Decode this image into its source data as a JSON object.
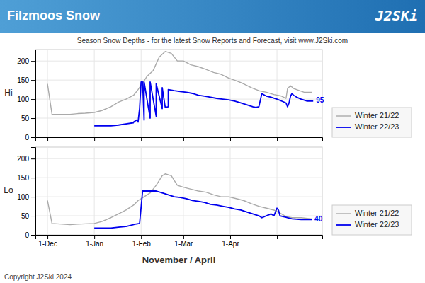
{
  "chart_data": [
    {
      "type": "line",
      "title": "Filzmoos Snow",
      "subtitle": "Season Snow Depths - for the latest Snow Reports and Forecast, visit www.J2Ski.com",
      "ylabel": "Hi",
      "series": [
        {
          "name": "Winter 21/22",
          "color": "#aaaaaa",
          "x": [
            0,
            3,
            10,
            15,
            20,
            25,
            31,
            36,
            42,
            47,
            52,
            57,
            60,
            64,
            66,
            70,
            74,
            78,
            82,
            86,
            90,
            95,
            100,
            105,
            110,
            115,
            120,
            125,
            130,
            135,
            140,
            145,
            150,
            155,
            158,
            159,
            161,
            163,
            165,
            170,
            175
          ],
          "values": [
            140,
            60,
            60,
            60,
            62,
            63,
            65,
            70,
            80,
            92,
            100,
            110,
            125,
            148,
            160,
            175,
            210,
            225,
            220,
            200,
            200,
            190,
            185,
            178,
            170,
            165,
            155,
            148,
            140,
            130,
            122,
            118,
            112,
            108,
            102,
            128,
            135,
            128,
            125,
            118,
            118
          ]
        },
        {
          "name": "Winter 22/23",
          "color": "#0000ee",
          "x": [
            31,
            36,
            42,
            47,
            52,
            57,
            57,
            59,
            60,
            61,
            62,
            63,
            63,
            64,
            64,
            68,
            68,
            72,
            72,
            76,
            76,
            78,
            80,
            80,
            84,
            88,
            92,
            96,
            100,
            104,
            108,
            112,
            116,
            120,
            124,
            128,
            132,
            136,
            138,
            140,
            142,
            143,
            144,
            145,
            148,
            152,
            155,
            158,
            159,
            160,
            161,
            162,
            163,
            164,
            165,
            168,
            172,
            176
          ],
          "values": [
            30,
            30,
            30,
            32,
            35,
            38,
            40,
            45,
            40,
            75,
            145,
            145,
            145,
            45,
            145,
            50,
            145,
            55,
            140,
            75,
            130,
            78,
            80,
            125,
            122,
            120,
            118,
            115,
            110,
            108,
            105,
            102,
            100,
            98,
            95,
            90,
            85,
            80,
            78,
            80,
            115,
            112,
            110,
            108,
            105,
            100,
            95,
            90,
            80,
            90,
            108,
            115,
            110,
            108,
            105,
            100,
            95,
            95
          ]
        }
      ],
      "xlim": [
        -8,
        182
      ],
      "ylim": [
        0,
        230
      ],
      "xticks": [
        0,
        31,
        62,
        90,
        121,
        152
      ],
      "yticks": [
        0,
        50,
        100,
        150,
        200
      ],
      "tick_labels": "y",
      "grid": true,
      "legend": "lower right",
      "annotations": [
        {
          "text": "J2SKi"
        },
        {
          "text": "Copyright J2Ski 2024"
        },
        {
          "text": "95",
          "x": 176,
          "y": 95
        }
      ]
    },
    {
      "type": "line",
      "xlabel": "November / April",
      "ylabel": "Lo",
      "series": [
        {
          "name": "Winter 21/22",
          "color": "#aaaaaa",
          "x": [
            0,
            3,
            10,
            15,
            20,
            25,
            31,
            36,
            42,
            47,
            52,
            57,
            60,
            64,
            68,
            72,
            76,
            78,
            82,
            86,
            90,
            95,
            100,
            105,
            110,
            115,
            120,
            125,
            130,
            135,
            140,
            145,
            150,
            155,
            158,
            162,
            168,
            175
          ],
          "values": [
            90,
            30,
            28,
            27,
            28,
            29,
            30,
            35,
            45,
            55,
            65,
            78,
            90,
            100,
            110,
            130,
            155,
            160,
            155,
            130,
            125,
            120,
            115,
            112,
            105,
            100,
            100,
            95,
            90,
            82,
            75,
            70,
            65,
            55,
            48,
            45,
            45,
            42
          ]
        },
        {
          "name": "Winter 22/23",
          "color": "#0000ee",
          "x": [
            31,
            36,
            42,
            47,
            52,
            55,
            58,
            61,
            63,
            64,
            68,
            72,
            76,
            80,
            84,
            88,
            92,
            96,
            100,
            104,
            108,
            112,
            116,
            120,
            124,
            128,
            132,
            136,
            140,
            142,
            148,
            150,
            152,
            153,
            154,
            156,
            158,
            160,
            162,
            168,
            175
          ],
          "values": [
            18,
            18,
            18,
            20,
            22,
            25,
            28,
            30,
            115,
            115,
            115,
            115,
            110,
            105,
            100,
            98,
            95,
            90,
            88,
            85,
            80,
            78,
            75,
            72,
            68,
            65,
            60,
            55,
            50,
            45,
            55,
            50,
            70,
            65,
            50,
            48,
            46,
            44,
            42,
            40,
            40
          ]
        }
      ],
      "xlim": [
        -8,
        182
      ],
      "ylim": [
        0,
        230
      ],
      "xticks": [
        {
          "value": 0,
          "label": "1-Dec"
        },
        {
          "value": 31,
          "label": "1-Jan"
        },
        {
          "value": 62,
          "label": "1-Feb"
        },
        {
          "value": 90,
          "label": "1-Mar"
        },
        {
          "value": 121,
          "label": "1-Apr"
        },
        {
          "value": 152,
          "label": null
        }
      ],
      "yticks": [
        0,
        50,
        100,
        150,
        200
      ],
      "grid": true,
      "legend": "lower right",
      "annotations": [
        {
          "text": "40",
          "x": 175,
          "y": 40
        }
      ]
    }
  ]
}
